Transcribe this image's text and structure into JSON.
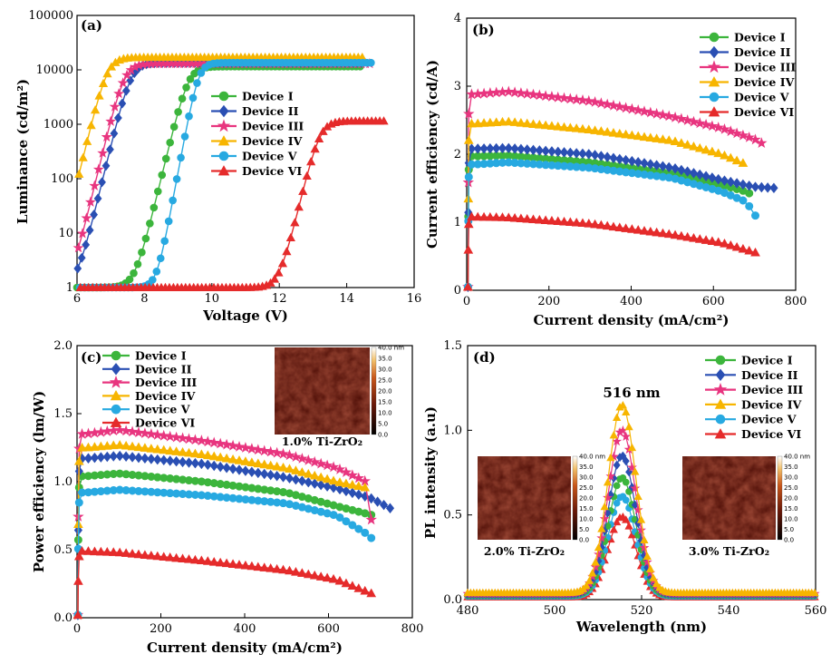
{
  "figure": {
    "devices": [
      "Device I",
      "Device II",
      "Device III",
      "Device IV",
      "Device V",
      "Device VI"
    ],
    "colors": {
      "Device I": "#3cb53c",
      "Device II": "#2a4fb3",
      "Device III": "#e8357f",
      "Device IV": "#f7b500",
      "Device V": "#27a9e1",
      "Device VI": "#e52b2b"
    },
    "markers": {
      "Device I": "circle",
      "Device II": "diamond",
      "Device III": "star",
      "Device IV": "triangle",
      "Device V": "circle",
      "Device VI": "triangle"
    }
  },
  "chart_data": [
    {
      "panel": "(a)",
      "type": "scatter",
      "xlabel": "Voltage (V)",
      "ylabel": "Luminance (cd/m²)",
      "xlim": [
        6,
        16
      ],
      "ylim": [
        1,
        100000
      ],
      "yscale": "log",
      "xticks": [
        "6",
        "8",
        "10",
        "12",
        "14",
        "16"
      ],
      "yticks": [
        "1",
        "10",
        "100",
        "1000",
        "10000",
        "100000"
      ],
      "legend": [
        "Device I",
        "Device II",
        "Device III",
        "Device IV",
        "Device V",
        "Device VI"
      ],
      "legend_position": "center-right",
      "series": [
        {
          "name": "Device I",
          "model": {
            "von": 9.3,
            "width": 0.17,
            "lmax": 11500,
            "xmax": 14.5
          }
        },
        {
          "name": "Device II",
          "model": {
            "von": 7.6,
            "width": 0.17,
            "lmax": 13500,
            "xmax": 14.5
          }
        },
        {
          "name": "Device III",
          "model": {
            "von": 7.4,
            "width": 0.17,
            "lmax": 13000,
            "xmax": 14.7
          }
        },
        {
          "name": "Device IV",
          "model": {
            "von": 6.9,
            "width": 0.17,
            "lmax": 17000,
            "xmax": 14.5
          }
        },
        {
          "name": "Device V",
          "model": {
            "von": 9.6,
            "width": 0.13,
            "lmax": 13500,
            "xmax": 14.8
          }
        },
        {
          "name": "Device VI",
          "model": {
            "von": 13.2,
            "width": 0.17,
            "lmax": 1150,
            "xmax": 15.2
          }
        }
      ]
    },
    {
      "panel": "(b)",
      "type": "scatter",
      "xlabel": "Current density (mA/cm²)",
      "ylabel": "Current efficiency (cd/A)",
      "xlim": [
        0,
        800
      ],
      "ylim": [
        0,
        4
      ],
      "xticks": [
        "0",
        "200",
        "400",
        "600",
        "800"
      ],
      "yticks": [
        "0",
        "1",
        "2",
        "3",
        "4"
      ],
      "legend": [
        "Device I",
        "Device II",
        "Device III",
        "Device IV",
        "Device V",
        "Device VI"
      ],
      "legend_position": "top-right",
      "series": [
        {
          "name": "Device I",
          "points": [
            [
              20,
              1.97
            ],
            [
              100,
              1.98
            ],
            [
              300,
              1.88
            ],
            [
              500,
              1.72
            ],
            [
              600,
              1.58
            ],
            [
              680,
              1.45
            ],
            [
              700,
              1.38
            ]
          ]
        },
        {
          "name": "Device II",
          "points": [
            [
              20,
              2.08
            ],
            [
              100,
              2.09
            ],
            [
              300,
              2.0
            ],
            [
              500,
              1.8
            ],
            [
              620,
              1.62
            ],
            [
              700,
              1.52
            ],
            [
              755,
              1.5
            ]
          ]
        },
        {
          "name": "Device III",
          "points": [
            [
              20,
              2.88
            ],
            [
              100,
              2.92
            ],
            [
              300,
              2.78
            ],
            [
              500,
              2.55
            ],
            [
              620,
              2.38
            ],
            [
              700,
              2.22
            ],
            [
              730,
              2.12
            ]
          ]
        },
        {
          "name": "Device IV",
          "points": [
            [
              20,
              2.45
            ],
            [
              100,
              2.48
            ],
            [
              300,
              2.36
            ],
            [
              500,
              2.2
            ],
            [
              620,
              2.0
            ],
            [
              680,
              1.85
            ]
          ]
        },
        {
          "name": "Device V",
          "points": [
            [
              20,
              1.85
            ],
            [
              100,
              1.88
            ],
            [
              300,
              1.8
            ],
            [
              500,
              1.65
            ],
            [
              620,
              1.45
            ],
            [
              680,
              1.3
            ],
            [
              705,
              1.07
            ]
          ]
        },
        {
          "name": "Device VI",
          "points": [
            [
              20,
              1.08
            ],
            [
              100,
              1.07
            ],
            [
              300,
              0.98
            ],
            [
              500,
              0.82
            ],
            [
              620,
              0.7
            ],
            [
              705,
              0.55
            ]
          ]
        }
      ]
    },
    {
      "panel": "(c)",
      "type": "scatter",
      "xlabel": "Current density (mA/cm²)",
      "ylabel": "Power efficiency (lm/W)",
      "xlim": [
        0,
        800
      ],
      "ylim": [
        0,
        2.0
      ],
      "xticks": [
        "0",
        "200",
        "400",
        "600",
        "800"
      ],
      "yticks": [
        "0.0",
        "0.5",
        "1.0",
        "1.5",
        "2.0"
      ],
      "legend": [
        "Device I",
        "Device II",
        "Device III",
        "Device IV",
        "Device V",
        "Device VI"
      ],
      "legend_position": "top-left",
      "series": [
        {
          "name": "Device I",
          "points": [
            [
              20,
              1.04
            ],
            [
              100,
              1.06
            ],
            [
              300,
              1.0
            ],
            [
              500,
              0.92
            ],
            [
              620,
              0.82
            ],
            [
              710,
              0.75
            ]
          ]
        },
        {
          "name": "Device II",
          "points": [
            [
              20,
              1.17
            ],
            [
              100,
              1.19
            ],
            [
              300,
              1.13
            ],
            [
              500,
              1.03
            ],
            [
              620,
              0.95
            ],
            [
              700,
              0.88
            ],
            [
              750,
              0.8
            ]
          ]
        },
        {
          "name": "Device III",
          "points": [
            [
              20,
              1.35
            ],
            [
              100,
              1.38
            ],
            [
              300,
              1.3
            ],
            [
              500,
              1.2
            ],
            [
              620,
              1.1
            ],
            [
              690,
              1.0
            ],
            [
              705,
              0.65
            ]
          ]
        },
        {
          "name": "Device IV",
          "points": [
            [
              20,
              1.25
            ],
            [
              100,
              1.27
            ],
            [
              300,
              1.2
            ],
            [
              500,
              1.1
            ],
            [
              620,
              1.0
            ],
            [
              700,
              0.95
            ]
          ]
        },
        {
          "name": "Device V",
          "points": [
            [
              20,
              0.92
            ],
            [
              100,
              0.94
            ],
            [
              300,
              0.9
            ],
            [
              500,
              0.84
            ],
            [
              620,
              0.75
            ],
            [
              700,
              0.6
            ],
            [
              710,
              0.53
            ]
          ]
        },
        {
          "name": "Device VI",
          "points": [
            [
              20,
              0.49
            ],
            [
              100,
              0.48
            ],
            [
              300,
              0.42
            ],
            [
              500,
              0.35
            ],
            [
              620,
              0.28
            ],
            [
              710,
              0.17
            ]
          ]
        }
      ],
      "inset": {
        "caption": "1.0% Ti-ZrO₂",
        "colorbar_ticks": [
          "40.0 nm",
          "35.0",
          "30.0",
          "25.0",
          "20.0",
          "15.0",
          "10.0",
          "5.0",
          "0.0"
        ]
      }
    },
    {
      "panel": "(d)",
      "type": "line",
      "xlabel": "Wavelength (nm)",
      "ylabel": "PL intensity (a.u)",
      "xlim": [
        480,
        560
      ],
      "ylim": [
        0,
        1.5
      ],
      "xticks": [
        "480",
        "500",
        "520",
        "540",
        "560"
      ],
      "yticks": [
        "0.0",
        "0.5",
        "1.0",
        "1.5"
      ],
      "annotation": "516 nm",
      "legend": [
        "Device I",
        "Device II",
        "Device III",
        "Device IV",
        "Device V",
        "Device VI"
      ],
      "legend_position": "top-right",
      "peak_nm": 515.5,
      "series": [
        {
          "name": "Device I",
          "peak": 0.72,
          "baseline": 0.025
        },
        {
          "name": "Device II",
          "peak": 0.85,
          "baseline": 0.03
        },
        {
          "name": "Device III",
          "peak": 1.0,
          "baseline": 0.035
        },
        {
          "name": "Device IV",
          "peak": 1.15,
          "baseline": 0.04
        },
        {
          "name": "Device V",
          "peak": 0.61,
          "baseline": 0.02
        },
        {
          "name": "Device VI",
          "peak": 0.49,
          "baseline": 0.015
        }
      ],
      "insets": [
        {
          "caption": "2.0% Ti-ZrO₂",
          "colorbar_ticks": [
            "40.0 nm",
            "35.0",
            "30.0",
            "25.0",
            "20.0",
            "15.0",
            "10.0",
            "5.0",
            "0.0"
          ]
        },
        {
          "caption": "3.0% Ti-ZrO₂",
          "colorbar_ticks": [
            "40.0 nm",
            "35.0",
            "30.0",
            "25.0",
            "20.0",
            "15.0",
            "10.0",
            "5.0",
            "0.0"
          ]
        }
      ]
    }
  ]
}
